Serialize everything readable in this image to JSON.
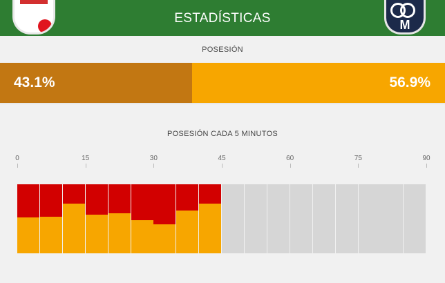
{
  "header": {
    "title": "ESTADÍSTICAS",
    "home_badge_icon": "team-crest-icon",
    "away_badge_icon": "team-crest-icon",
    "away_badge_letter": "M",
    "colors": {
      "header": "#2e7d32"
    }
  },
  "possession": {
    "label": "POSESIÓN",
    "home_value": "43.1%",
    "away_value": "56.9%",
    "home_fraction": 0.431,
    "colors": {
      "home": "#c27712",
      "away": "#f7a600"
    }
  },
  "timeline": {
    "label": "POSESIÓN CADA 5 MINUTOS",
    "ticks": [
      "0",
      "15",
      "30",
      "45",
      "60",
      "75",
      "90"
    ],
    "colors": {
      "home": "#d20000",
      "away": "#f7a600",
      "empty": "#d6d6d6"
    },
    "segments": [
      {
        "home": 0.48,
        "away": 0.52
      },
      {
        "home": 0.47,
        "away": 0.53
      },
      {
        "home": 0.28,
        "away": 0.72
      },
      {
        "home": 0.44,
        "away": 0.56
      },
      {
        "home": 0.42,
        "away": 0.58
      },
      {
        "home": 0.52,
        "away": 0.48
      },
      {
        "home": 0.58,
        "away": 0.42
      },
      {
        "home": 0.38,
        "away": 0.62
      },
      {
        "home": 0.28,
        "away": 0.72
      },
      null,
      null,
      null,
      null,
      null,
      null,
      null,
      null,
      null
    ]
  }
}
